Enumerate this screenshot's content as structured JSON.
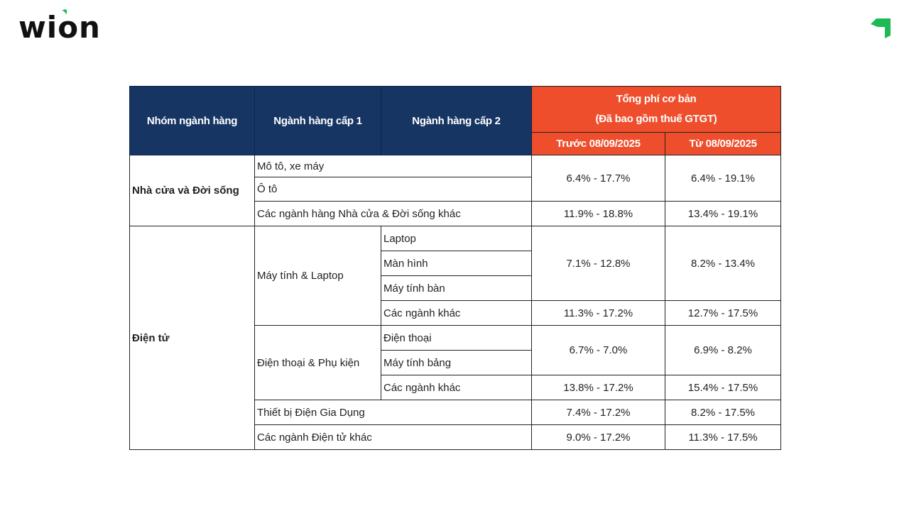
{
  "brand": {
    "logo_text": "wion",
    "accent": "#1db954"
  },
  "colors": {
    "header_blue": "#163563",
    "header_red": "#ee4e2c"
  },
  "table": {
    "headers": {
      "group": "Nhóm ngành hàng",
      "level1": "Ngành hàng cấp 1",
      "level2": "Ngành hàng cấp 2",
      "fee_title": "Tổng phí cơ bản",
      "fee_subtitle": "(Đã bao gồm thuế GTGT)",
      "before": "Trước 08/09/2025",
      "from": "Từ 08/09/2025"
    },
    "groups": [
      {
        "name": "Nhà cửa và Đời sống"
      },
      {
        "name": "Điện tử"
      }
    ],
    "rows": [
      {
        "label": "Mô tô, xe máy",
        "before": "6.4% - 17.7%",
        "from": "6.4% - 19.1%"
      },
      {
        "label": "Ô tô"
      },
      {
        "label": "Các ngành hàng Nhà cửa & Đời sống khác",
        "before": "11.9% - 18.8%",
        "from": "13.4% - 19.1%"
      },
      {
        "level1": "Máy tính & Laptop",
        "label": "Laptop",
        "before": "7.1% - 12.8%",
        "from": "8.2% - 13.4%"
      },
      {
        "label": "Màn hình"
      },
      {
        "label": "Máy tính bàn"
      },
      {
        "label": "Các ngành khác",
        "before": "11.3% - 17.2%",
        "from": "12.7% - 17.5%"
      },
      {
        "level1": "Điện thoại & Phụ kiện",
        "label": "Điện thoại",
        "before": "6.7% - 7.0%",
        "from": "6.9% - 8.2%"
      },
      {
        "label": "Máy tính bảng"
      },
      {
        "label": "Các ngành khác",
        "before": "13.8% - 17.2%",
        "from": "15.4% - 17.5%"
      },
      {
        "label": "Thiết bị Điện Gia Dụng",
        "before": "7.4% - 17.2%",
        "from": "8.2% - 17.5%"
      },
      {
        "label": "Các ngành Điện tử khác",
        "before": "9.0% - 17.2%",
        "from": "11.3% - 17.5%"
      }
    ]
  }
}
